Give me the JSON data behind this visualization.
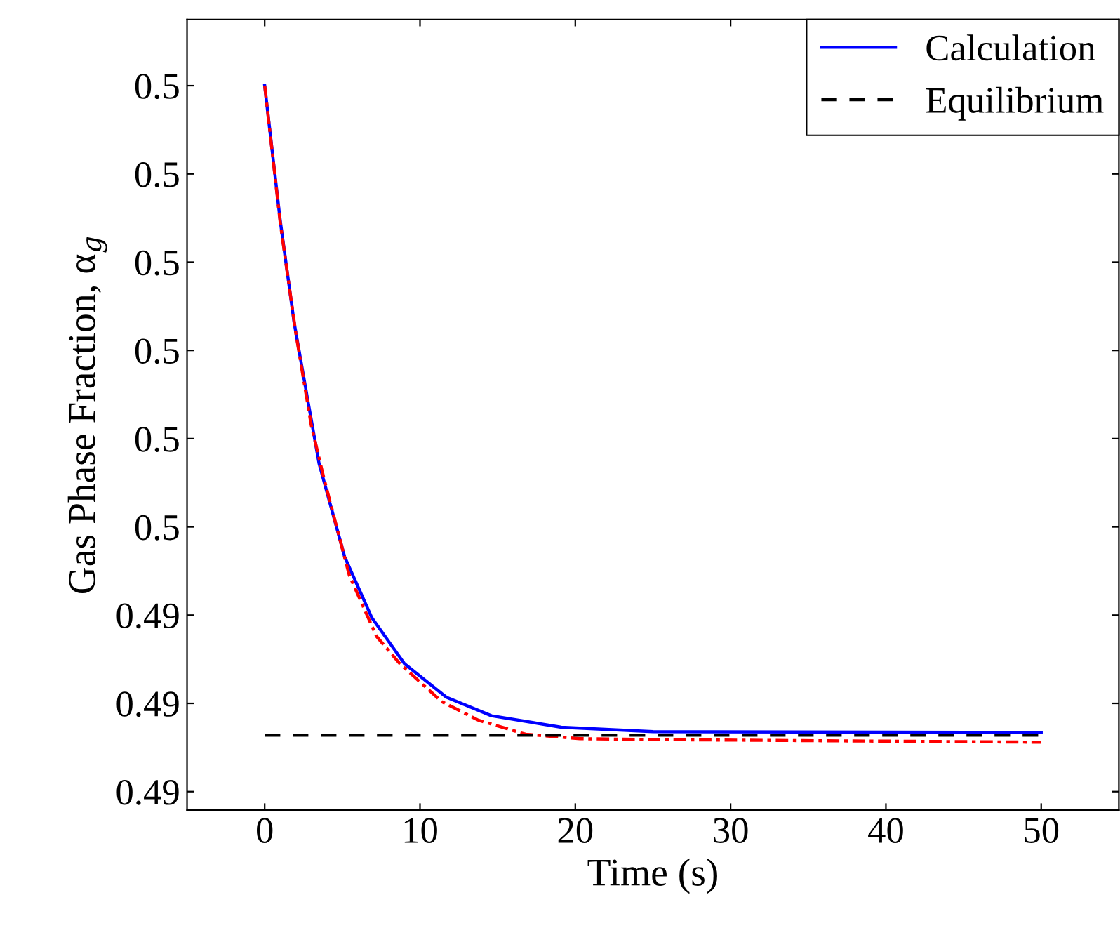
{
  "chart_data": {
    "type": "line",
    "xlabel": "Time (s)",
    "ylabel": "Gas Phase Fraction, α$_{g}$",
    "xlim": [
      -5,
      55
    ],
    "xticks": [
      0,
      10,
      20,
      30,
      40,
      50
    ],
    "ylim": [
      0.49179,
      0.50075
    ],
    "yticks": [
      {
        "value": 0.492,
        "label": "0.49"
      },
      {
        "value": 0.493,
        "label": "0.49"
      },
      {
        "value": 0.494,
        "label": "0.49"
      },
      {
        "value": 0.495,
        "label": "0.5"
      },
      {
        "value": 0.496,
        "label": "0.5"
      },
      {
        "value": 0.497,
        "label": "0.5"
      },
      {
        "value": 0.498,
        "label": "0.5"
      },
      {
        "value": 0.499,
        "label": "0.5"
      },
      {
        "value": 0.5,
        "label": "0.5"
      }
    ],
    "grid": false,
    "legend": "top right",
    "marker": "none",
    "series": [
      {
        "name": "Calculation",
        "color": "#0000ff",
        "line_style": "solid",
        "x": [
          0,
          1,
          1.9,
          2.8,
          3.5,
          5.15,
          6.9,
          9,
          11.7,
          14.6,
          19.1,
          25,
          50
        ],
        "values": [
          0.5,
          0.49847,
          0.49731,
          0.49641,
          0.49572,
          0.49466,
          0.49397,
          0.49345,
          0.49307,
          0.49286,
          0.49273,
          0.49268,
          0.49267
        ]
      },
      {
        "color": "#ff0000",
        "line_style": "dashdot",
        "x": [
          0,
          1,
          2,
          3,
          3.8,
          5.45,
          7.2,
          8.7,
          11.4,
          13.75,
          16.8,
          20.3,
          25,
          50
        ],
        "values": [
          0.5,
          0.49845,
          0.4972,
          0.49615,
          0.49556,
          0.49445,
          0.49376,
          0.49345,
          0.49302,
          0.49281,
          0.49265,
          0.4926,
          0.49259,
          0.49256
        ]
      },
      {
        "name": "Equilibrium",
        "color": "#000000",
        "line_style": "dashed",
        "x": [
          0,
          50
        ],
        "values": [
          0.49264,
          0.49264
        ]
      }
    ]
  }
}
